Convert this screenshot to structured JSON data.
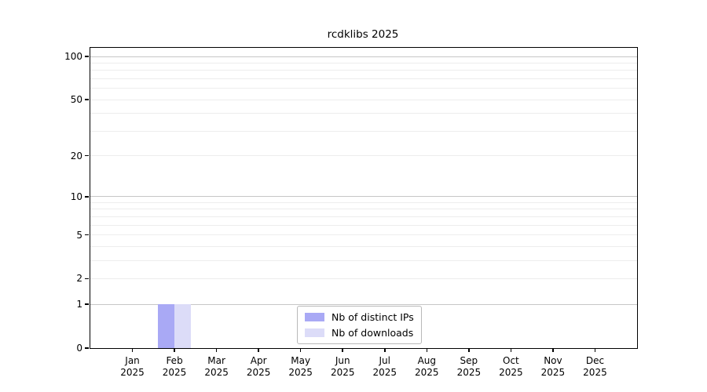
{
  "figure": {
    "background": "#ffffff"
  },
  "colors": {
    "grid_major": "#c6c6c6",
    "grid_minor": "#ededed",
    "spine": "#000000",
    "legend_border": "#b9b9b9"
  },
  "chart_data": {
    "type": "bar",
    "title": "rcdklibs 2025",
    "categories": [
      "Jan",
      "Feb",
      "Mar",
      "Apr",
      "May",
      "Jun",
      "Jul",
      "Aug",
      "Sep",
      "Oct",
      "Nov",
      "Dec"
    ],
    "category_year": "2025",
    "series": [
      {
        "name": "Nb of distinct IPs",
        "color": "#a9a9f5",
        "values": [
          0,
          1,
          0,
          0,
          0,
          0,
          0,
          0,
          0,
          0,
          0,
          0
        ]
      },
      {
        "name": "Nb of downloads",
        "color": "#dcdcf8",
        "values": [
          0,
          1,
          0,
          0,
          0,
          0,
          0,
          0,
          0,
          0,
          0,
          0
        ]
      }
    ],
    "y_ticks": [
      0,
      1,
      2,
      5,
      10,
      20,
      50,
      100
    ],
    "y_major_gridlines": [
      1,
      10,
      100
    ],
    "y_minor_gridlines": [
      2,
      3,
      4,
      5,
      6,
      7,
      8,
      9,
      20,
      30,
      40,
      50,
      60,
      70,
      80,
      90
    ],
    "ylim": [
      0,
      115
    ],
    "y_scale": "log10(value+1)",
    "xlabel": "",
    "ylabel": "",
    "grid": "horizontal",
    "legend_position": "bottom-center"
  }
}
